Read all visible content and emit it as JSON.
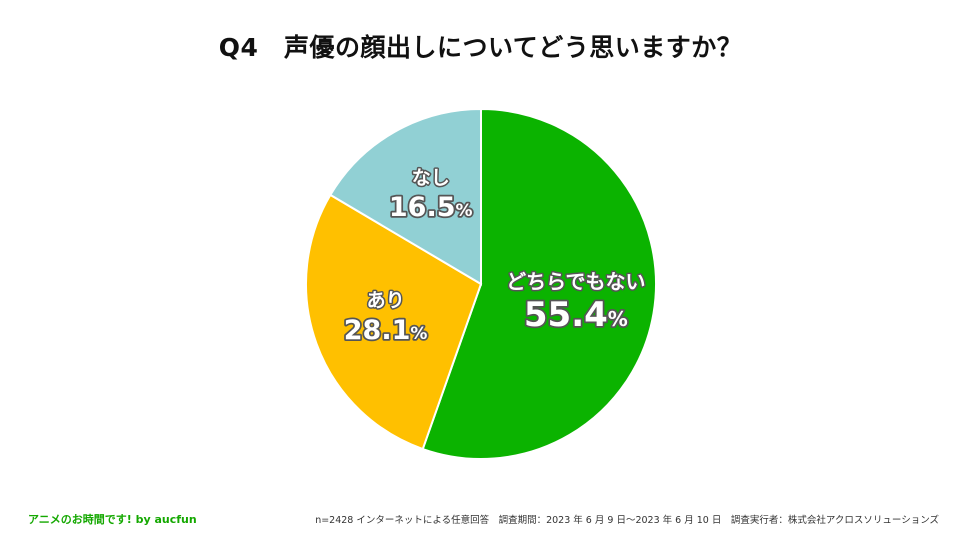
{
  "title": "Q4　声優の顔出しについてどう思いますか？",
  "chart_data": {
    "type": "pie",
    "title": "Q4　声優の顔出しについてどう思いますか？",
    "slices": [
      {
        "label": "どちらでもない",
        "value": 55.4,
        "display": "55.4",
        "unit": "%",
        "color": "#0bb300"
      },
      {
        "label": "あり",
        "value": 28.1,
        "display": "28.1",
        "unit": "%",
        "color": "#ffc000"
      },
      {
        "label": "なし",
        "value": 16.5,
        "display": "16.5",
        "unit": "%",
        "color": "#91d0d4"
      }
    ],
    "start_angle": "12 o'clock",
    "direction": "clockwise",
    "legend": "none"
  },
  "footer": {
    "brand": "アニメのお時間です! by aucfun",
    "note": "n=2428 インターネットによる任意回答　調査期間：2023 年 6 月 9 日～2023 年 6 月 10 日　調査実行者：株式会社アクロスソリューションズ"
  }
}
